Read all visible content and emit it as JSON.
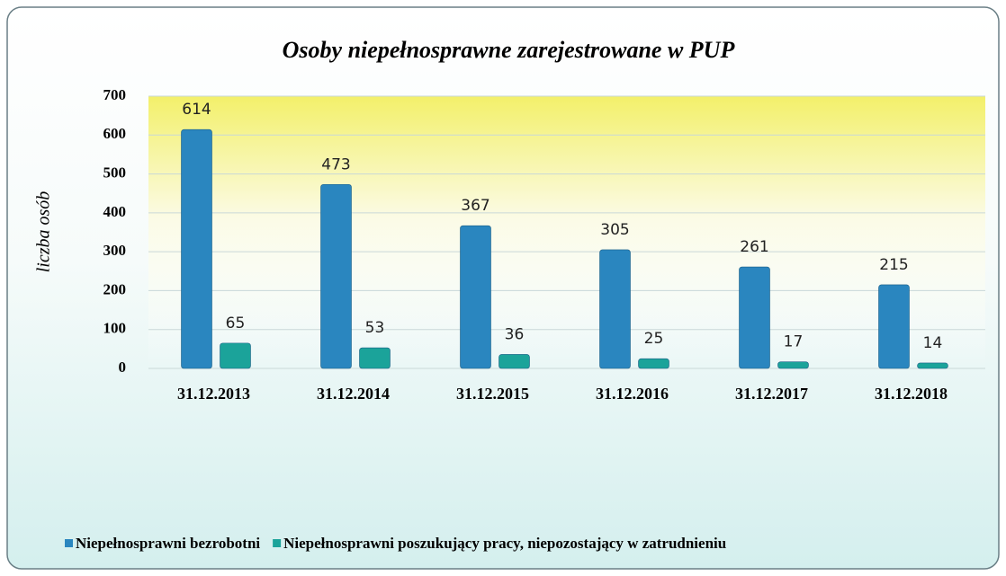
{
  "chart_data": {
    "type": "bar",
    "title": "Osoby niepełnosprawne zarejestrowane w PUP",
    "y_label": "liczba osób",
    "categories": [
      "31.12.2013",
      "31.12.2014",
      "31.12.2015",
      "31.12.2016",
      "31.12.2017",
      "31.12.2018"
    ],
    "series": [
      {
        "name": "Niepełnosprawni bezrobotni",
        "color": "#2a86bf",
        "values": [
          614,
          473,
          367,
          305,
          261,
          215
        ]
      },
      {
        "name": "Niepełnosprawni poszukujący pracy, niepozostający w zatrudnieniu",
        "color": "#1ba39a",
        "values": [
          65,
          53,
          36,
          25,
          17,
          14
        ]
      }
    ],
    "ylim": [
      0,
      700
    ],
    "yticks": [
      0,
      100,
      200,
      300,
      400,
      500,
      600,
      700
    ],
    "grid": true,
    "legend": "bottom"
  }
}
